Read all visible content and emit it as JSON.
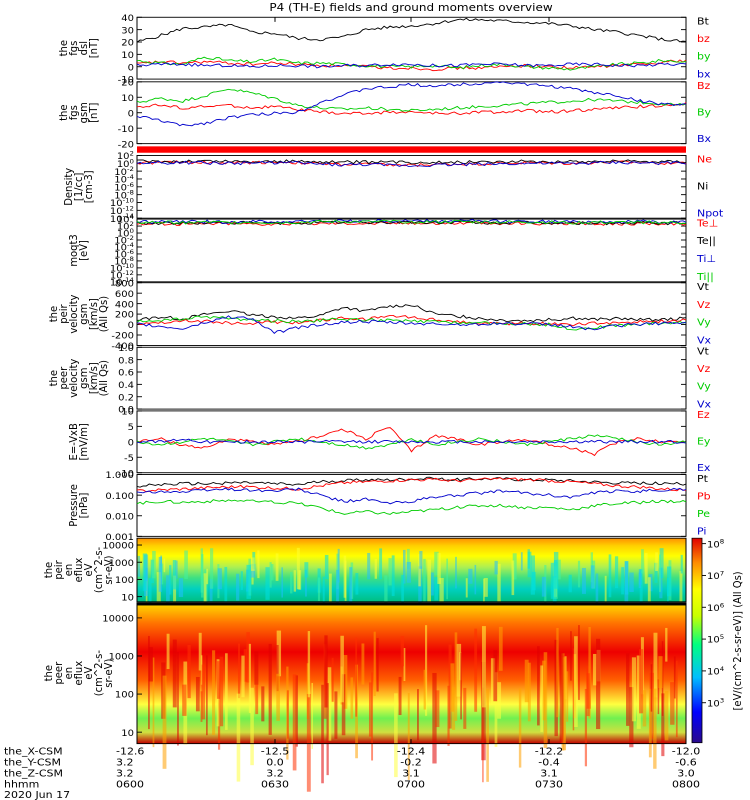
{
  "title": "P4 (TH-E) fields and ground moments overview",
  "xaxis": {
    "ticks": [
      "-12.6",
      "-12.5",
      "-12.4",
      "-12.2",
      "-12.0"
    ],
    "rows": [
      {
        "label": "the_X-CSM",
        "values": [
          "-12.6",
          "-12.5",
          "-12.4",
          "-12.2",
          "-12.0"
        ]
      },
      {
        "label": "the_Y-CSM",
        "values": [
          "3.2",
          "0.0",
          "-0.2",
          "-0.4",
          "-0.6"
        ]
      },
      {
        "label": "the_Z-CSM",
        "values": [
          "3.2",
          "3.2",
          "3.1",
          "3.1",
          "3.0"
        ]
      },
      {
        "label": "hhmm",
        "values": [
          "0600",
          "0630",
          "0700",
          "0730",
          "0800"
        ]
      }
    ],
    "date": "2020 Jun 17"
  },
  "colorbar": {
    "label": "[eV/(cm^2-s-sr-eV)] (All Qs)",
    "ticks": [
      "10^8",
      "10^7",
      "10^6",
      "10^5",
      "10^4",
      "10^3"
    ]
  },
  "chart_data": [
    {
      "id": "fgs-dsl",
      "type": "line",
      "ylabel": [
        "the",
        "fgs",
        "dsl",
        "[nT]"
      ],
      "yticks": [
        "40",
        "30",
        "20",
        "10",
        "0",
        "-10"
      ],
      "ylim": [
        -10,
        40
      ],
      "series": [
        {
          "name": "Bt",
          "color": "#000000",
          "values": [
            20,
            25,
            31,
            32,
            34,
            28,
            27,
            23,
            22,
            24,
            30,
            32,
            33,
            35,
            38,
            38,
            37,
            36,
            35,
            33,
            30,
            28,
            25,
            22,
            20
          ]
        },
        {
          "name": "bz",
          "color": "#ff0000",
          "values": [
            2,
            4,
            3,
            4,
            3,
            2,
            3,
            2,
            1,
            1,
            0,
            -1,
            -1,
            -2,
            -1,
            -1,
            0,
            1,
            0,
            -1,
            0,
            1,
            2,
            4,
            5
          ]
        },
        {
          "name": "by",
          "color": "#00cc00",
          "values": [
            5,
            3,
            2,
            8,
            5,
            4,
            6,
            3,
            3,
            2,
            1,
            0,
            0,
            1,
            -1,
            1,
            2,
            0,
            -1,
            -2,
            0,
            2,
            3,
            5,
            4
          ]
        },
        {
          "name": "bx",
          "color": "#0000cc",
          "values": [
            1,
            2,
            2,
            1,
            1,
            0,
            1,
            1,
            0,
            1,
            1,
            2,
            2,
            1,
            1,
            2,
            2,
            1,
            1,
            2,
            2,
            1,
            1,
            2,
            2
          ]
        }
      ]
    },
    {
      "id": "fgs-gsm",
      "type": "line",
      "ylabel": [
        "the",
        "fgs",
        "gsm",
        "[nT]"
      ],
      "yticks": [
        "20",
        "10",
        "0",
        "-10",
        "-20"
      ],
      "ylim": [
        -25,
        20
      ],
      "series": [
        {
          "name": "Bz",
          "color": "#ff0000",
          "values": [
            2,
            3,
            1,
            2,
            3,
            1,
            2,
            0,
            -2,
            -3,
            -3,
            -2,
            -2,
            -3,
            -3,
            -2,
            -2,
            -1,
            -2,
            -1,
            0,
            1,
            2,
            3,
            4
          ]
        },
        {
          "name": "By",
          "color": "#00cc00",
          "values": [
            5,
            8,
            6,
            10,
            15,
            12,
            8,
            3,
            1,
            0,
            1,
            0,
            -1,
            0,
            1,
            2,
            3,
            4,
            5,
            6,
            7,
            6,
            5,
            4,
            3
          ]
        },
        {
          "name": "Bx",
          "color": "#0000cc",
          "values": [
            -5,
            -8,
            -12,
            -10,
            -6,
            -4,
            -3,
            -2,
            5,
            10,
            15,
            16,
            18,
            17,
            18,
            19,
            20,
            18,
            17,
            15,
            12,
            10,
            6,
            4,
            3
          ]
        }
      ]
    },
    {
      "id": "density",
      "type": "line",
      "ylabel": [
        "Density",
        "[1/cc]",
        "[cm-3]"
      ],
      "yticks": [
        "10^2",
        "10^0",
        "10^-2",
        "10^-4",
        "10^-6",
        "10^-8",
        "10^-10",
        "10^-12",
        "10^-14"
      ],
      "ylim": [
        -14,
        2
      ],
      "log": true,
      "series": [
        {
          "name": "Ne",
          "color": "#ff0000",
          "values": [
            0.1,
            0.2,
            0.3,
            0.2,
            0.1,
            0.2,
            0.3,
            0.2,
            -0.1,
            -0.3,
            -0.2,
            -0.4,
            -0.5,
            -0.3,
            -0.2,
            -0.1,
            0.0,
            0.1,
            0.1,
            0.0,
            0.2,
            0.3,
            0.2,
            0.1,
            0.2
          ]
        },
        {
          "name": "Ni",
          "color": "#000000",
          "values": [
            0.5,
            0.4,
            0.5,
            0.6,
            0.5,
            0.4,
            0.5,
            0.5,
            0.4,
            0.3,
            0.3,
            0.3,
            0.2,
            0.3,
            0.3,
            0.4,
            0.4,
            0.5,
            0.5,
            0.4,
            0.5,
            0.6,
            0.5,
            0.5,
            0.5
          ]
        },
        {
          "name": "Npot",
          "color": "#0000cc",
          "values": [
            0.0,
            0.1,
            0.2,
            0.1,
            0.0,
            0.1,
            0.2,
            0.1,
            -0.2,
            -0.4,
            -0.3,
            -0.5,
            -0.6,
            -0.4,
            -0.3,
            -0.2,
            -0.1,
            0.0,
            0.0,
            -0.1,
            0.1,
            0.2,
            0.1,
            0.0,
            0.1
          ]
        }
      ]
    },
    {
      "id": "temperature",
      "type": "line",
      "ylabel": [
        "moqt3",
        "[eV]"
      ],
      "yticks": [
        "10^4",
        "10^2",
        "10^0",
        "10^-2",
        "10^-4",
        "10^-6",
        "10^-8",
        "10^-10",
        "10^-12",
        "10^-14"
      ],
      "ylim": [
        -14,
        4
      ],
      "log": true,
      "series": [
        {
          "name": "Te⊥",
          "color": "#ff0000",
          "values": [
            2.6,
            2.7,
            2.6,
            2.7,
            2.8,
            2.7,
            2.6,
            2.7,
            2.8,
            2.9,
            2.8,
            2.9,
            2.9,
            2.8,
            2.9,
            2.8,
            2.7,
            2.8,
            2.7,
            2.6,
            2.7,
            2.6,
            2.7,
            2.6,
            2.6
          ]
        },
        {
          "name": "Te||",
          "color": "#000000",
          "values": [
            2.8,
            2.9,
            2.8,
            2.9,
            3.0,
            2.9,
            2.8,
            2.9,
            3.0,
            3.1,
            3.0,
            3.1,
            3.1,
            3.0,
            3.1,
            3.0,
            2.9,
            3.0,
            2.9,
            2.8,
            2.9,
            2.8,
            2.9,
            2.8,
            2.8
          ]
        },
        {
          "name": "Ti⊥",
          "color": "#0000cc",
          "values": [
            3.2,
            3.3,
            3.2,
            3.3,
            3.2,
            3.3,
            3.2,
            3.3,
            3.4,
            3.5,
            3.4,
            3.5,
            3.5,
            3.4,
            3.5,
            3.4,
            3.3,
            3.4,
            3.3,
            3.2,
            3.3,
            3.2,
            3.3,
            3.2,
            3.2
          ]
        },
        {
          "name": "Ti||",
          "color": "#00cc00",
          "values": [
            3.0,
            3.1,
            3.0,
            3.1,
            3.0,
            3.1,
            3.0,
            3.1,
            3.2,
            3.3,
            3.2,
            3.3,
            3.3,
            3.2,
            3.3,
            3.2,
            3.1,
            3.2,
            3.1,
            3.0,
            3.1,
            3.0,
            3.1,
            3.0,
            3.0
          ]
        }
      ]
    },
    {
      "id": "peir-velocity",
      "type": "line",
      "ylabel": [
        "the",
        "peir",
        "velocity",
        "gsm",
        "[km/s]",
        "(All Qs)"
      ],
      "yticks": [
        "800",
        "600",
        "400",
        "200",
        "0",
        "-200",
        "-400"
      ],
      "ylim": [
        -400,
        800
      ],
      "series": [
        {
          "name": "Vt",
          "color": "#000000",
          "values": [
            90,
            150,
            110,
            200,
            260,
            180,
            150,
            120,
            170,
            330,
            250,
            350,
            380,
            200,
            160,
            120,
            90,
            80,
            90,
            120,
            100,
            110,
            90,
            100,
            120
          ]
        },
        {
          "name": "Vz",
          "color": "#ff0000",
          "values": [
            20,
            40,
            80,
            60,
            30,
            20,
            50,
            30,
            80,
            120,
            100,
            160,
            150,
            90,
            60,
            30,
            20,
            30,
            20,
            0,
            20,
            40,
            50,
            60,
            80
          ]
        },
        {
          "name": "Vy",
          "color": "#00cc00",
          "values": [
            50,
            80,
            100,
            150,
            120,
            90,
            70,
            60,
            80,
            100,
            90,
            80,
            60,
            50,
            40,
            30,
            20,
            10,
            0,
            -80,
            -60,
            -20,
            10,
            30,
            40
          ]
        },
        {
          "name": "Vx",
          "color": "#0000cc",
          "values": [
            10,
            -40,
            -80,
            40,
            150,
            120,
            -160,
            -60,
            0,
            40,
            60,
            40,
            20,
            10,
            0,
            10,
            20,
            10,
            0,
            -40,
            -90,
            -20,
            10,
            20,
            30
          ]
        }
      ]
    },
    {
      "id": "peer-velocity",
      "type": "line",
      "ylabel": [
        "the",
        "peer",
        "velocity",
        "gsm",
        "[km/s]",
        "(All Qs)"
      ],
      "yticks": [
        "1.0",
        "0.8",
        "0.6",
        "0.4",
        "0.2",
        "0.0"
      ],
      "ylim": [
        0,
        1
      ],
      "series": [
        {
          "name": "Vt",
          "color": "#000000",
          "values": []
        },
        {
          "name": "Vz",
          "color": "#ff0000",
          "values": []
        },
        {
          "name": "Vy",
          "color": "#00cc00",
          "values": []
        },
        {
          "name": "Vx",
          "color": "#0000cc",
          "values": []
        }
      ]
    },
    {
      "id": "efield",
      "type": "line",
      "ylabel": [
        "E=-VxB",
        "[mV/m]"
      ],
      "yticks": [
        "10",
        "5",
        "0",
        "-5",
        "-10"
      ],
      "ylim": [
        -10,
        10
      ],
      "series": [
        {
          "name": "Ez",
          "color": "#ff0000",
          "values": [
            0,
            1,
            -1,
            -2,
            1,
            0,
            -1,
            0,
            2,
            4,
            1,
            5,
            -3,
            2,
            1,
            -1,
            0,
            1,
            -1,
            -2,
            -4,
            0,
            1,
            0,
            0
          ]
        },
        {
          "name": "Ey",
          "color": "#00cc00",
          "values": [
            0,
            -1,
            0,
            1,
            0,
            -1,
            0,
            1,
            0,
            -1,
            -2,
            -1,
            1,
            -1,
            0,
            1,
            0,
            -1,
            0,
            1,
            2,
            1,
            0,
            -1,
            0
          ]
        },
        {
          "name": "Ex",
          "color": "#0000cc",
          "values": [
            0,
            0,
            1,
            0,
            0,
            0,
            0,
            0,
            0,
            0,
            0,
            0,
            0,
            0,
            0,
            0,
            0,
            0,
            0,
            0,
            0,
            0,
            0,
            0,
            0
          ]
        }
      ]
    },
    {
      "id": "pressure",
      "type": "line",
      "ylabel": [
        "Pressure",
        "[nPa]"
      ],
      "yticks": [
        "1.000",
        "0.100",
        "0.010",
        "0.001"
      ],
      "ylim": [
        -3,
        0
      ],
      "log": true,
      "series": [
        {
          "name": "Pt",
          "color": "#000000",
          "values": [
            -0.55,
            -0.5,
            -0.45,
            -0.45,
            -0.4,
            -0.4,
            -0.45,
            -0.5,
            -0.35,
            -0.3,
            -0.25,
            -0.25,
            -0.2,
            -0.2,
            -0.25,
            -0.2,
            -0.2,
            -0.25,
            -0.25,
            -0.3,
            -0.35,
            -0.4,
            -0.4,
            -0.45,
            -0.45
          ]
        },
        {
          "name": "Pb",
          "color": "#ff0000",
          "values": [
            -0.8,
            -0.75,
            -0.7,
            -0.65,
            -0.6,
            -0.6,
            -0.65,
            -0.7,
            -0.55,
            -0.4,
            -0.35,
            -0.3,
            -0.25,
            -0.25,
            -0.3,
            -0.25,
            -0.2,
            -0.25,
            -0.3,
            -0.35,
            -0.45,
            -0.55,
            -0.6,
            -0.7,
            -0.75
          ]
        },
        {
          "name": "Pe",
          "color": "#00cc00",
          "values": [
            -1.4,
            -1.3,
            -1.35,
            -1.3,
            -1.25,
            -1.3,
            -1.35,
            -1.4,
            -1.6,
            -1.9,
            -1.8,
            -1.9,
            -1.8,
            -1.7,
            -1.6,
            -1.5,
            -1.5,
            -1.6,
            -1.6,
            -1.7,
            -1.5,
            -1.4,
            -1.35,
            -1.3,
            -1.3
          ]
        },
        {
          "name": "Pi",
          "color": "#0000cc",
          "values": [
            -0.9,
            -0.8,
            -0.85,
            -0.75,
            -0.7,
            -0.75,
            -0.8,
            -0.7,
            -1.0,
            -1.3,
            -1.2,
            -1.4,
            -1.3,
            -1.1,
            -1.0,
            -0.9,
            -0.8,
            -0.9,
            -1.0,
            -1.1,
            -0.9,
            -0.8,
            -0.8,
            -0.75,
            -0.7
          ]
        }
      ]
    },
    {
      "id": "peir-eflux",
      "type": "heatmap",
      "ylabel": [
        "the",
        "peir",
        "en",
        "eflux",
        "eV",
        "(cm^2-s-",
        "sr-eV)"
      ],
      "yticks": [
        "10000",
        "1000",
        "100",
        "10"
      ],
      "ylim": [
        5,
        25000
      ],
      "log": true
    },
    {
      "id": "peer-eflux",
      "type": "heatmap",
      "ylabel": [
        "the",
        "peer",
        "en",
        "eflux",
        "eV",
        "(cm^2-s-",
        "sr-eV)"
      ],
      "yticks": [
        "10000",
        "1000",
        "100",
        "10"
      ],
      "ylim": [
        5,
        25000
      ],
      "log": true
    }
  ]
}
